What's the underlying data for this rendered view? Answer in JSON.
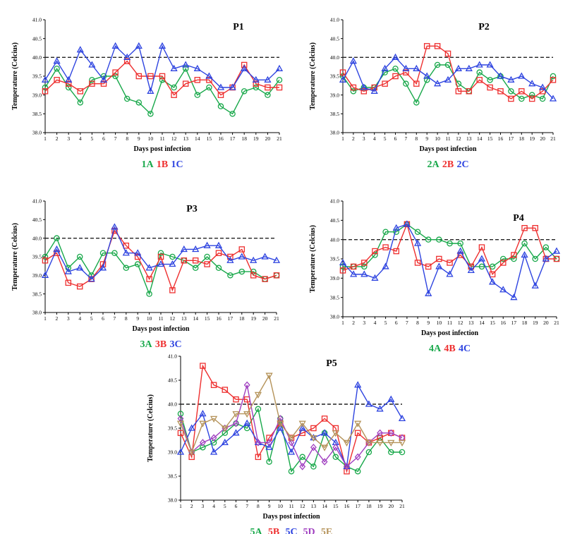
{
  "chart_data": [
    {
      "type": "line",
      "title": "P1",
      "xlabel": "Days post infection",
      "ylabel": "Temperature (Celcius)",
      "ylim": [
        38.0,
        41.0
      ],
      "yticks": [
        "38.0",
        "38.5",
        "39.0",
        "39.5",
        "40.0",
        "40.5",
        "41.0"
      ],
      "x": [
        1,
        2,
        3,
        4,
        5,
        6,
        7,
        8,
        9,
        10,
        11,
        12,
        13,
        14,
        15,
        16,
        17,
        18,
        19,
        20,
        21
      ],
      "threshold": 40.0,
      "series": [
        {
          "name": "1A",
          "color": "#18a84a",
          "marker": "circle",
          "values": [
            39.2,
            39.7,
            39.2,
            38.8,
            39.4,
            39.5,
            39.5,
            38.9,
            38.8,
            38.5,
            39.4,
            39.2,
            39.7,
            39.0,
            39.2,
            38.7,
            38.5,
            39.1,
            39.2,
            39.0,
            39.4
          ]
        },
        {
          "name": "1B",
          "color": "#ee2f2f",
          "marker": "square",
          "values": [
            39.1,
            39.4,
            39.3,
            39.1,
            39.3,
            39.3,
            39.6,
            39.9,
            39.5,
            39.5,
            39.5,
            39.0,
            39.3,
            39.4,
            39.4,
            39.0,
            39.2,
            39.8,
            39.3,
            39.2,
            39.2
          ]
        },
        {
          "name": "1C",
          "color": "#2e44e0",
          "marker": "triangle",
          "values": [
            39.4,
            39.9,
            39.4,
            40.2,
            39.8,
            39.4,
            40.3,
            40.0,
            40.3,
            39.1,
            40.3,
            39.7,
            39.8,
            39.7,
            39.5,
            39.2,
            39.2,
            39.7,
            39.4,
            39.4,
            39.7
          ]
        }
      ]
    },
    {
      "type": "line",
      "title": "P2",
      "xlabel": "Days post infection",
      "ylabel": "Temperature (Celcius)",
      "ylim": [
        38.0,
        41.0
      ],
      "yticks": [
        "38.0",
        "38.5",
        "39.0",
        "39.5",
        "40.0",
        "40.5",
        "41.0"
      ],
      "x": [
        1,
        2,
        3,
        4,
        5,
        6,
        7,
        8,
        9,
        10,
        11,
        12,
        13,
        14,
        15,
        16,
        17,
        18,
        19,
        20,
        21
      ],
      "threshold": 40.0,
      "series": [
        {
          "name": "2A",
          "color": "#18a84a",
          "marker": "circle",
          "values": [
            39.5,
            39.1,
            39.2,
            39.2,
            39.6,
            39.7,
            39.3,
            38.8,
            39.4,
            39.8,
            39.8,
            39.3,
            39.1,
            39.6,
            39.4,
            39.5,
            39.1,
            38.9,
            39.0,
            38.9,
            39.5
          ]
        },
        {
          "name": "2B",
          "color": "#ee2f2f",
          "marker": "square",
          "values": [
            39.6,
            39.2,
            39.1,
            39.2,
            39.3,
            39.5,
            39.6,
            39.3,
            40.3,
            40.3,
            40.1,
            39.1,
            39.1,
            39.4,
            39.2,
            39.1,
            38.9,
            39.1,
            38.9,
            39.1,
            39.4
          ]
        },
        {
          "name": "2C",
          "color": "#2e44e0",
          "marker": "triangle",
          "values": [
            39.4,
            39.9,
            39.2,
            39.1,
            39.7,
            40.0,
            39.7,
            39.7,
            39.5,
            39.3,
            39.4,
            39.7,
            39.7,
            39.8,
            39.8,
            39.5,
            39.4,
            39.5,
            39.3,
            39.2,
            38.9
          ]
        }
      ]
    },
    {
      "type": "line",
      "title": "P3",
      "xlabel": "Days post infection",
      "ylabel": "Temperature (Celcius)",
      "ylim": [
        38.0,
        41.0
      ],
      "yticks": [
        "38.0",
        "38.5",
        "39.0",
        "39.5",
        "40.0",
        "40.5",
        "41.0"
      ],
      "x": [
        1,
        2,
        3,
        4,
        5,
        6,
        7,
        8,
        9,
        10,
        11,
        12,
        13,
        14,
        15,
        16,
        17,
        18,
        19,
        20,
        21
      ],
      "threshold": 40.0,
      "series": [
        {
          "name": "3A",
          "color": "#18a84a",
          "marker": "circle",
          "values": [
            39.5,
            40.0,
            39.2,
            39.5,
            39.0,
            39.6,
            39.6,
            39.2,
            39.3,
            38.5,
            39.6,
            39.5,
            39.4,
            39.2,
            39.5,
            39.2,
            39.0,
            39.1,
            39.1,
            38.9,
            39.0
          ]
        },
        {
          "name": "3B",
          "color": "#ee2f2f",
          "marker": "square",
          "values": [
            39.4,
            39.6,
            38.8,
            38.7,
            38.9,
            39.3,
            40.2,
            39.8,
            39.5,
            38.9,
            39.5,
            38.6,
            39.4,
            39.4,
            39.3,
            39.6,
            39.5,
            39.7,
            39.0,
            38.9,
            39.0
          ]
        },
        {
          "name": "3C",
          "color": "#2e44e0",
          "marker": "triangle",
          "values": [
            39.0,
            39.7,
            39.1,
            39.2,
            38.9,
            39.2,
            40.3,
            39.6,
            39.6,
            39.2,
            39.3,
            39.3,
            39.7,
            39.7,
            39.8,
            39.8,
            39.4,
            39.5,
            39.4,
            39.5,
            39.4
          ]
        }
      ]
    },
    {
      "type": "line",
      "title": "P4",
      "xlabel": "Days post infection",
      "ylabel": "Temperature (Celcius)",
      "ylim": [
        38.0,
        41.0
      ],
      "yticks": [
        "38.0",
        "38.5",
        "39.0",
        "39.5",
        "40.0",
        "40.5",
        "41.0"
      ],
      "x": [
        1,
        2,
        3,
        4,
        5,
        6,
        7,
        8,
        9,
        10,
        11,
        12,
        13,
        14,
        15,
        16,
        17,
        18,
        19,
        20,
        21
      ],
      "threshold": 40.0,
      "series": [
        {
          "name": "4A",
          "color": "#18a84a",
          "marker": "circle",
          "values": [
            39.3,
            39.3,
            39.3,
            39.6,
            40.2,
            40.2,
            40.4,
            40.2,
            40.0,
            40.0,
            39.9,
            39.9,
            39.3,
            39.3,
            39.3,
            39.5,
            39.5,
            39.9,
            39.5,
            39.8,
            39.5
          ]
        },
        {
          "name": "4B",
          "color": "#ee2f2f",
          "marker": "square",
          "values": [
            39.2,
            39.3,
            39.4,
            39.7,
            39.8,
            39.7,
            40.4,
            39.4,
            39.3,
            39.5,
            39.4,
            39.6,
            39.3,
            39.8,
            39.1,
            39.4,
            39.6,
            40.3,
            40.3,
            39.5,
            39.5
          ]
        },
        {
          "name": "4C",
          "color": "#2e44e0",
          "marker": "triangle",
          "values": [
            39.4,
            39.1,
            39.1,
            39.0,
            39.3,
            40.3,
            40.4,
            39.9,
            38.6,
            39.3,
            39.1,
            39.7,
            39.2,
            39.5,
            38.9,
            38.7,
            38.5,
            39.6,
            38.8,
            39.5,
            39.7
          ]
        }
      ]
    },
    {
      "type": "line",
      "title": "P5",
      "xlabel": "Days post infection",
      "ylabel": "Temperature (Celcius)",
      "ylim": [
        38.0,
        41.0
      ],
      "yticks": [
        "38.0",
        "38.5",
        "39.0",
        "39.5",
        "40.0",
        "40.5",
        "41.0"
      ],
      "x": [
        1,
        2,
        3,
        4,
        5,
        6,
        7,
        8,
        9,
        10,
        11,
        12,
        13,
        14,
        15,
        16,
        17,
        18,
        19,
        20,
        21
      ],
      "threshold": 40.0,
      "series": [
        {
          "name": "5A",
          "color": "#18a84a",
          "marker": "circle",
          "values": [
            39.8,
            39.0,
            39.1,
            39.2,
            39.4,
            39.6,
            39.5,
            39.9,
            38.8,
            39.7,
            38.6,
            38.9,
            38.7,
            39.4,
            38.9,
            38.7,
            38.6,
            39.0,
            39.3,
            39.0,
            39.0
          ]
        },
        {
          "name": "5B",
          "color": "#ee2f2f",
          "marker": "square",
          "values": [
            39.4,
            38.9,
            40.8,
            40.4,
            40.3,
            40.1,
            40.1,
            38.9,
            39.3,
            39.6,
            39.3,
            39.4,
            39.5,
            39.7,
            39.5,
            38.6,
            39.4,
            39.2,
            39.3,
            39.4,
            39.3
          ]
        },
        {
          "name": "5C",
          "color": "#2e44e0",
          "marker": "triangle",
          "values": [
            39.0,
            39.5,
            39.8,
            39.0,
            39.2,
            39.4,
            39.6,
            39.2,
            39.1,
            39.5,
            39.0,
            39.5,
            39.3,
            39.4,
            39.2,
            38.7,
            40.4,
            40.0,
            39.9,
            40.1,
            39.7
          ]
        },
        {
          "name": "5D",
          "color": "#a040c0",
          "marker": "diamond",
          "values": [
            39.7,
            39.0,
            39.2,
            39.3,
            39.5,
            39.6,
            40.4,
            39.2,
            39.2,
            39.7,
            39.2,
            38.7,
            39.1,
            38.8,
            39.1,
            38.7,
            38.9,
            39.2,
            39.4,
            39.4,
            39.3
          ]
        },
        {
          "name": "5E",
          "color": "#b5935a",
          "marker": "triangle-down",
          "values": [
            39.6,
            39.0,
            39.6,
            39.7,
            39.5,
            39.8,
            39.8,
            40.2,
            40.6,
            39.6,
            39.3,
            39.6,
            39.3,
            39.1,
            39.4,
            39.2,
            39.6,
            39.2,
            39.2,
            39.2,
            39.2
          ]
        }
      ]
    }
  ]
}
